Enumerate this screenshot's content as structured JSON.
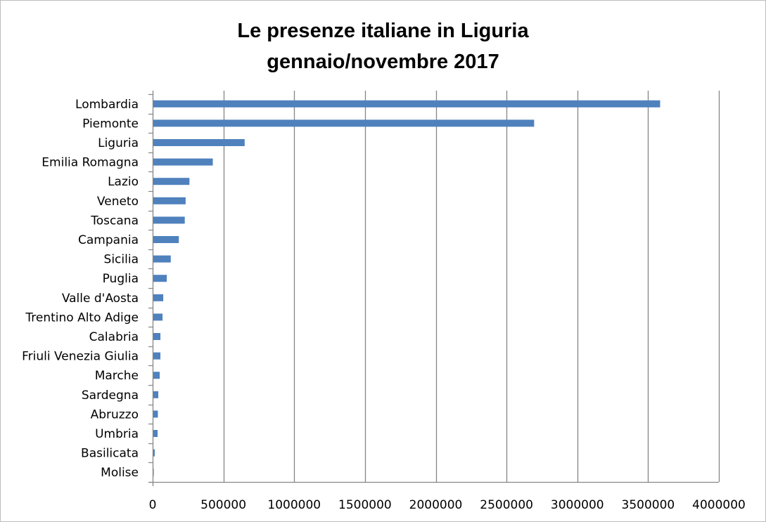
{
  "chart_data": {
    "type": "bar",
    "orientation": "horizontal",
    "title": [
      "Le presenze italiane in Liguria",
      "gennaio/novembre 2017"
    ],
    "categories": [
      "Lombardia",
      "Piemonte",
      "Liguria",
      "Emilia Romagna",
      "Lazio",
      "Veneto",
      "Toscana",
      "Campania",
      "Sicilia",
      "Puglia",
      "Valle d'Aosta",
      "Trentino Alto Adige",
      "Calabria",
      "Friuli Venezia Giulia",
      "Marche",
      "Sardegna",
      "Abruzzo",
      "Umbria",
      "Basilicata",
      "Molise"
    ],
    "values": [
      3580000,
      2690000,
      645000,
      420000,
      255000,
      228000,
      222000,
      180000,
      123000,
      95000,
      70000,
      65000,
      50000,
      50000,
      45000,
      35000,
      32000,
      30000,
      10000,
      3000
    ],
    "xlabel": "",
    "ylabel": "",
    "xlim": [
      0,
      4000000
    ],
    "ticks": [
      "0",
      "500000",
      "1000000",
      "1500000",
      "2000000",
      "2500000",
      "3000000",
      "3500000",
      "4000000"
    ],
    "tick_values": [
      0,
      500000,
      1000000,
      1500000,
      2000000,
      2500000,
      3000000,
      3500000,
      4000000
    ],
    "grid": true,
    "legend": "none",
    "bar_color": "#4f81bd",
    "grid_color": "#868686"
  }
}
